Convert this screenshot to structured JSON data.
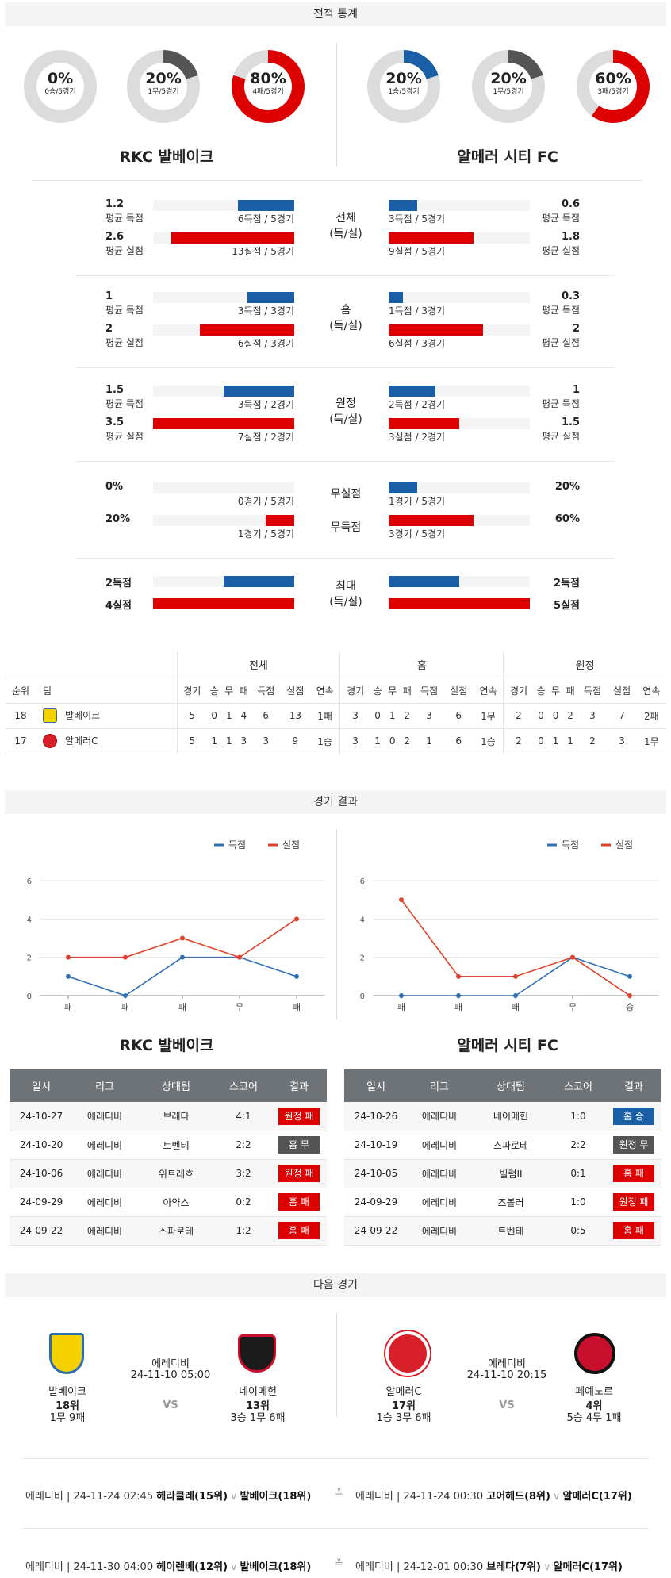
{
  "headers": {
    "stats": "전적 통계",
    "results": "경기 결과",
    "next": "다음 경기"
  },
  "teams": {
    "home": "RKC 발베이크",
    "away": "알메러 시티 FC"
  },
  "donuts": {
    "home": [
      {
        "pct": "0%",
        "rec": "0승/5경기",
        "value": 0,
        "color": "#1a5ea6"
      },
      {
        "pct": "20%",
        "rec": "1무/5경기",
        "value": 20,
        "color": "#555555"
      },
      {
        "pct": "80%",
        "rec": "4패/5경기",
        "value": 80,
        "color": "#dd0000"
      }
    ],
    "away": [
      {
        "pct": "20%",
        "rec": "1승/5경기",
        "value": 20,
        "color": "#1a5ea6"
      },
      {
        "pct": "20%",
        "rec": "1무/5경기",
        "value": 20,
        "color": "#555555"
      },
      {
        "pct": "60%",
        "rec": "3패/5경기",
        "value": 60,
        "color": "#dd0000"
      }
    ]
  },
  "stat_groups": [
    {
      "label1": "전체",
      "label2": "(득/실)",
      "home": {
        "scored": "1.2",
        "scored_lbl": "평균 득점",
        "scored_cap": "6득점 / 5경기",
        "scored_frac": 0.4,
        "conceded": "2.6",
        "conceded_lbl": "평균 실점",
        "conceded_cap": "13실점 / 5경기",
        "conceded_frac": 0.87
      },
      "away": {
        "scored": "0.6",
        "scored_lbl": "평균 득점",
        "scored_cap": "3득점 / 5경기",
        "scored_frac": 0.2,
        "conceded": "1.8",
        "conceded_lbl": "평균 실점",
        "conceded_cap": "9실점 / 5경기",
        "conceded_frac": 0.6
      }
    },
    {
      "label1": "홈",
      "label2": "(득/실)",
      "home": {
        "scored": "1",
        "scored_lbl": "평균 득점",
        "scored_cap": "3득점 / 3경기",
        "scored_frac": 0.33,
        "conceded": "2",
        "conceded_lbl": "평균 실점",
        "conceded_cap": "6실점 / 3경기",
        "conceded_frac": 0.67
      },
      "away": {
        "scored": "0.3",
        "scored_lbl": "평균 득점",
        "scored_cap": "1득점 / 3경기",
        "scored_frac": 0.1,
        "conceded": "2",
        "conceded_lbl": "평균 실점",
        "conceded_cap": "6실점 / 3경기",
        "conceded_frac": 0.67
      }
    },
    {
      "label1": "원정",
      "label2": "(득/실)",
      "home": {
        "scored": "1.5",
        "scored_lbl": "평균 득점",
        "scored_cap": "3득점 / 2경기",
        "scored_frac": 0.5,
        "conceded": "3.5",
        "conceded_lbl": "평균 실점",
        "conceded_cap": "7실점 / 2경기",
        "conceded_frac": 1.0
      },
      "away": {
        "scored": "1",
        "scored_lbl": "평균 득점",
        "scored_cap": "2득점 / 2경기",
        "scored_frac": 0.33,
        "conceded": "1.5",
        "conceded_lbl": "평균 실점",
        "conceded_cap": "3실점 / 2경기",
        "conceded_frac": 0.5
      }
    }
  ],
  "clean": {
    "label_a": "무실점",
    "label_b": "무득점",
    "home": {
      "a": "0%",
      "a_cap": "0경기 / 5경기",
      "a_frac": 0,
      "b": "20%",
      "b_cap": "1경기 / 5경기",
      "b_frac": 0.2
    },
    "away": {
      "a": "20%",
      "a_cap": "1경기 / 5경기",
      "a_frac": 0.2,
      "b": "60%",
      "b_cap": "3경기 / 5경기",
      "b_frac": 0.6
    }
  },
  "maxes": {
    "label1": "최대",
    "label2": "(득/실)",
    "home": {
      "a": "2득점",
      "a_frac": 0.5,
      "b": "4실점",
      "b_frac": 1.0
    },
    "away": {
      "a": "2득점",
      "a_frac": 0.5,
      "b": "5실점",
      "b_frac": 1.0
    }
  },
  "standings": {
    "groups": [
      "전체",
      "홈",
      "원정"
    ],
    "cols_left": [
      "순위",
      "팀"
    ],
    "cols": [
      "경기",
      "승",
      "무",
      "패",
      "득점",
      "실점",
      "연속"
    ],
    "rows": [
      {
        "rank": "18",
        "team": "발베이크",
        "all": [
          "5",
          "0",
          "1",
          "4",
          "6",
          "13",
          "1패"
        ],
        "home": [
          "3",
          "0",
          "1",
          "2",
          "3",
          "6",
          "1무"
        ],
        "away": [
          "2",
          "0",
          "0",
          "2",
          "3",
          "7",
          "2패"
        ]
      },
      {
        "rank": "17",
        "team": "알메러C",
        "all": [
          "5",
          "1",
          "1",
          "3",
          "3",
          "9",
          "1승"
        ],
        "home": [
          "3",
          "1",
          "0",
          "2",
          "1",
          "6",
          "1승"
        ],
        "away": [
          "2",
          "0",
          "1",
          "1",
          "2",
          "3",
          "1무"
        ]
      }
    ]
  },
  "chart_data": [
    {
      "type": "line",
      "categories": [
        "패",
        "패",
        "패",
        "무",
        "패"
      ],
      "ylim": [
        0,
        6
      ],
      "yticks": [
        0,
        2,
        4,
        6
      ],
      "series": [
        {
          "name": "득점",
          "color": "#2f6fb4",
          "values": [
            1,
            0,
            2,
            2,
            1
          ]
        },
        {
          "name": "실점",
          "color": "#e0432b",
          "values": [
            2,
            2,
            3,
            2,
            4
          ]
        }
      ]
    },
    {
      "type": "line",
      "categories": [
        "패",
        "패",
        "패",
        "무",
        "승"
      ],
      "ylim": [
        0,
        6
      ],
      "yticks": [
        0,
        2,
        4,
        6
      ],
      "series": [
        {
          "name": "득점",
          "color": "#2f6fb4",
          "values": [
            0,
            0,
            0,
            2,
            1
          ]
        },
        {
          "name": "실점",
          "color": "#e0432b",
          "values": [
            5,
            1,
            1,
            2,
            0
          ]
        }
      ]
    }
  ],
  "results": {
    "cols": [
      "일시",
      "리그",
      "상대팀",
      "스코어",
      "결과"
    ],
    "home": [
      {
        "date": "24-10-27",
        "league": "에레디비",
        "opp": "브레다",
        "score": "4:1",
        "result": "원정 패",
        "color": "red"
      },
      {
        "date": "24-10-20",
        "league": "에레디비",
        "opp": "트벤테",
        "score": "2:2",
        "result": "홈 무",
        "color": "gray"
      },
      {
        "date": "24-10-06",
        "league": "에레디비",
        "opp": "위트레흐",
        "score": "3:2",
        "result": "원정 패",
        "color": "red"
      },
      {
        "date": "24-09-29",
        "league": "에레디비",
        "opp": "아약스",
        "score": "0:2",
        "result": "홈 패",
        "color": "red"
      },
      {
        "date": "24-09-22",
        "league": "에레디비",
        "opp": "스파로테",
        "score": "1:2",
        "result": "홈 패",
        "color": "red"
      }
    ],
    "away": [
      {
        "date": "24-10-26",
        "league": "에레디비",
        "opp": "네이메헌",
        "score": "1:0",
        "result": "홈 승",
        "color": "blue"
      },
      {
        "date": "24-10-19",
        "league": "에레디비",
        "opp": "스파로테",
        "score": "2:2",
        "result": "원정 무",
        "color": "gray"
      },
      {
        "date": "24-10-05",
        "league": "에레디비",
        "opp": "빌럼II",
        "score": "0:1",
        "result": "홈 패",
        "color": "red"
      },
      {
        "date": "24-09-29",
        "league": "에레디비",
        "opp": "즈볼러",
        "score": "1:0",
        "result": "원정 패",
        "color": "red"
      },
      {
        "date": "24-09-22",
        "league": "에레디비",
        "opp": "트벤테",
        "score": "0:5",
        "result": "홈 패",
        "color": "red"
      }
    ]
  },
  "next": [
    {
      "league": "에레디비",
      "datetime": "24-11-10 05:00",
      "vs": "VS",
      "t1": {
        "name": "발베이크",
        "rank": "18위",
        "rec": "1무 9패",
        "logo": "RKC"
      },
      "t2": {
        "name": "네이메헌",
        "rank": "13위",
        "rec": "3승 1무 6패",
        "logo": "NEC"
      }
    },
    {
      "league": "에레디비",
      "datetime": "24-11-10 20:15",
      "vs": "VS",
      "t1": {
        "name": "알메러C",
        "rank": "17위",
        "rec": "1승 3무 6패",
        "logo": "ALMERE"
      },
      "t2": {
        "name": "페예노르",
        "rank": "4위",
        "rec": "5승 4무 1패",
        "logo": "F"
      }
    }
  ],
  "upcoming": [
    {
      "left": {
        "pre": "에레디비 | 24-11-24 02:45",
        "a": "헤라클레(15위)",
        "b": "발베이크(18위)"
      },
      "right": {
        "pre": "에레디비 | 24-11-24 00:30",
        "a": "고어헤드(8위)",
        "b": "알메러C(17위)"
      }
    },
    {
      "left": {
        "pre": "에레디비 | 24-11-30 04:00",
        "a": "헤이렌베(12위)",
        "b": "발베이크(18위)"
      },
      "right": {
        "pre": "에레디비 | 24-12-01 00:30",
        "a": "브레다(7위)",
        "b": "알메러C(17위)"
      }
    }
  ]
}
